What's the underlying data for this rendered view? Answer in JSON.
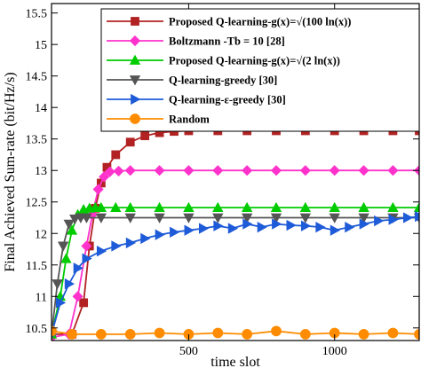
{
  "chart_data": {
    "type": "line",
    "xlabel": "time slot",
    "ylabel": "Final Achieved Sum-rate (bit/Hz/s)",
    "xlim": [
      30,
      1290
    ],
    "ylim": [
      10.3,
      15.65
    ],
    "x_ticks": [
      500,
      1000
    ],
    "y_ticks": [
      10.5,
      11,
      11.5,
      12,
      12.5,
      13,
      13.5,
      14,
      14.5,
      15,
      15.5
    ],
    "x_tick_labels": [
      "500",
      "1000"
    ],
    "y_tick_labels": [
      "10.5",
      "11",
      "11.5",
      "12",
      "12.5",
      "13",
      "13.5",
      "14",
      "14.5",
      "15",
      "15.5"
    ],
    "grid": false,
    "legend_position": "top-right",
    "series": [
      {
        "name": "Proposed Q-learning-g(x)=√(100 ln(x))",
        "color": "#b22222",
        "marker": "square",
        "x": [
          30,
          100,
          140,
          160,
          180,
          200,
          220,
          250,
          300,
          350,
          400,
          450,
          500,
          600,
          700,
          800,
          900,
          1000,
          1100,
          1200,
          1290
        ],
        "y": [
          10.4,
          10.4,
          10.9,
          11.8,
          12.4,
          12.8,
          13.05,
          13.25,
          13.45,
          13.55,
          13.6,
          13.62,
          13.63,
          13.63,
          13.63,
          13.63,
          13.63,
          13.63,
          13.63,
          13.63,
          13.63
        ]
      },
      {
        "name": "Boltzmann -Tb = 10 [28]",
        "color": "#ff33cc",
        "marker": "diamond",
        "x": [
          30,
          90,
          120,
          150,
          170,
          190,
          210,
          230,
          260,
          300,
          400,
          500,
          600,
          700,
          800,
          900,
          1000,
          1100,
          1200,
          1290
        ],
        "y": [
          10.35,
          10.4,
          11.0,
          11.8,
          12.3,
          12.7,
          12.9,
          12.98,
          12.99,
          13.0,
          13.0,
          13.0,
          13.0,
          13.0,
          13.0,
          13.0,
          13.0,
          13.0,
          13.0,
          13.0
        ]
      },
      {
        "name": "Proposed Q-learning-g(x)=√(2 ln(x))",
        "color": "#00cc00",
        "marker": "triangle-up",
        "x": [
          30,
          60,
          80,
          100,
          120,
          140,
          160,
          180,
          200,
          250,
          300,
          400,
          500,
          600,
          700,
          800,
          900,
          1000,
          1100,
          1200,
          1290
        ],
        "y": [
          10.4,
          11.0,
          11.6,
          12.05,
          12.3,
          12.38,
          12.4,
          12.41,
          12.41,
          12.41,
          12.41,
          12.41,
          12.41,
          12.41,
          12.41,
          12.41,
          12.41,
          12.41,
          12.41,
          12.41,
          12.41
        ]
      },
      {
        "name": "Q-learning-greedy [30]",
        "color": "#555555",
        "marker": "triangle-down",
        "x": [
          30,
          50,
          70,
          90,
          110,
          130,
          150,
          200,
          300,
          400,
          500,
          600,
          700,
          800,
          900,
          1000,
          1100,
          1200,
          1290
        ],
        "y": [
          10.4,
          11.2,
          11.8,
          12.15,
          12.23,
          12.25,
          12.25,
          12.25,
          12.25,
          12.25,
          12.25,
          12.25,
          12.25,
          12.25,
          12.25,
          12.25,
          12.25,
          12.25,
          12.25
        ]
      },
      {
        "name": "Q-learning-ε-greedy [30]",
        "color": "#1e5bd8",
        "marker": "triangle-right",
        "x": [
          30,
          60,
          90,
          120,
          150,
          200,
          250,
          300,
          350,
          400,
          450,
          500,
          550,
          600,
          650,
          700,
          750,
          800,
          850,
          900,
          950,
          1000,
          1050,
          1100,
          1150,
          1200,
          1250,
          1290
        ],
        "y": [
          10.4,
          10.9,
          11.2,
          11.45,
          11.6,
          11.72,
          11.8,
          11.85,
          11.92,
          11.98,
          12.02,
          12.05,
          12.08,
          12.12,
          12.08,
          12.15,
          12.1,
          12.15,
          12.13,
          12.12,
          12.1,
          12.05,
          12.1,
          12.15,
          12.2,
          12.22,
          12.25,
          12.27
        ]
      },
      {
        "name": "Random",
        "color": "#ff8c00",
        "marker": "circle",
        "x": [
          30,
          100,
          200,
          300,
          400,
          500,
          600,
          700,
          800,
          900,
          1000,
          1100,
          1200,
          1290
        ],
        "y": [
          10.45,
          10.4,
          10.4,
          10.4,
          10.42,
          10.4,
          10.42,
          10.4,
          10.45,
          10.4,
          10.42,
          10.4,
          10.42,
          10.4
        ]
      }
    ]
  }
}
